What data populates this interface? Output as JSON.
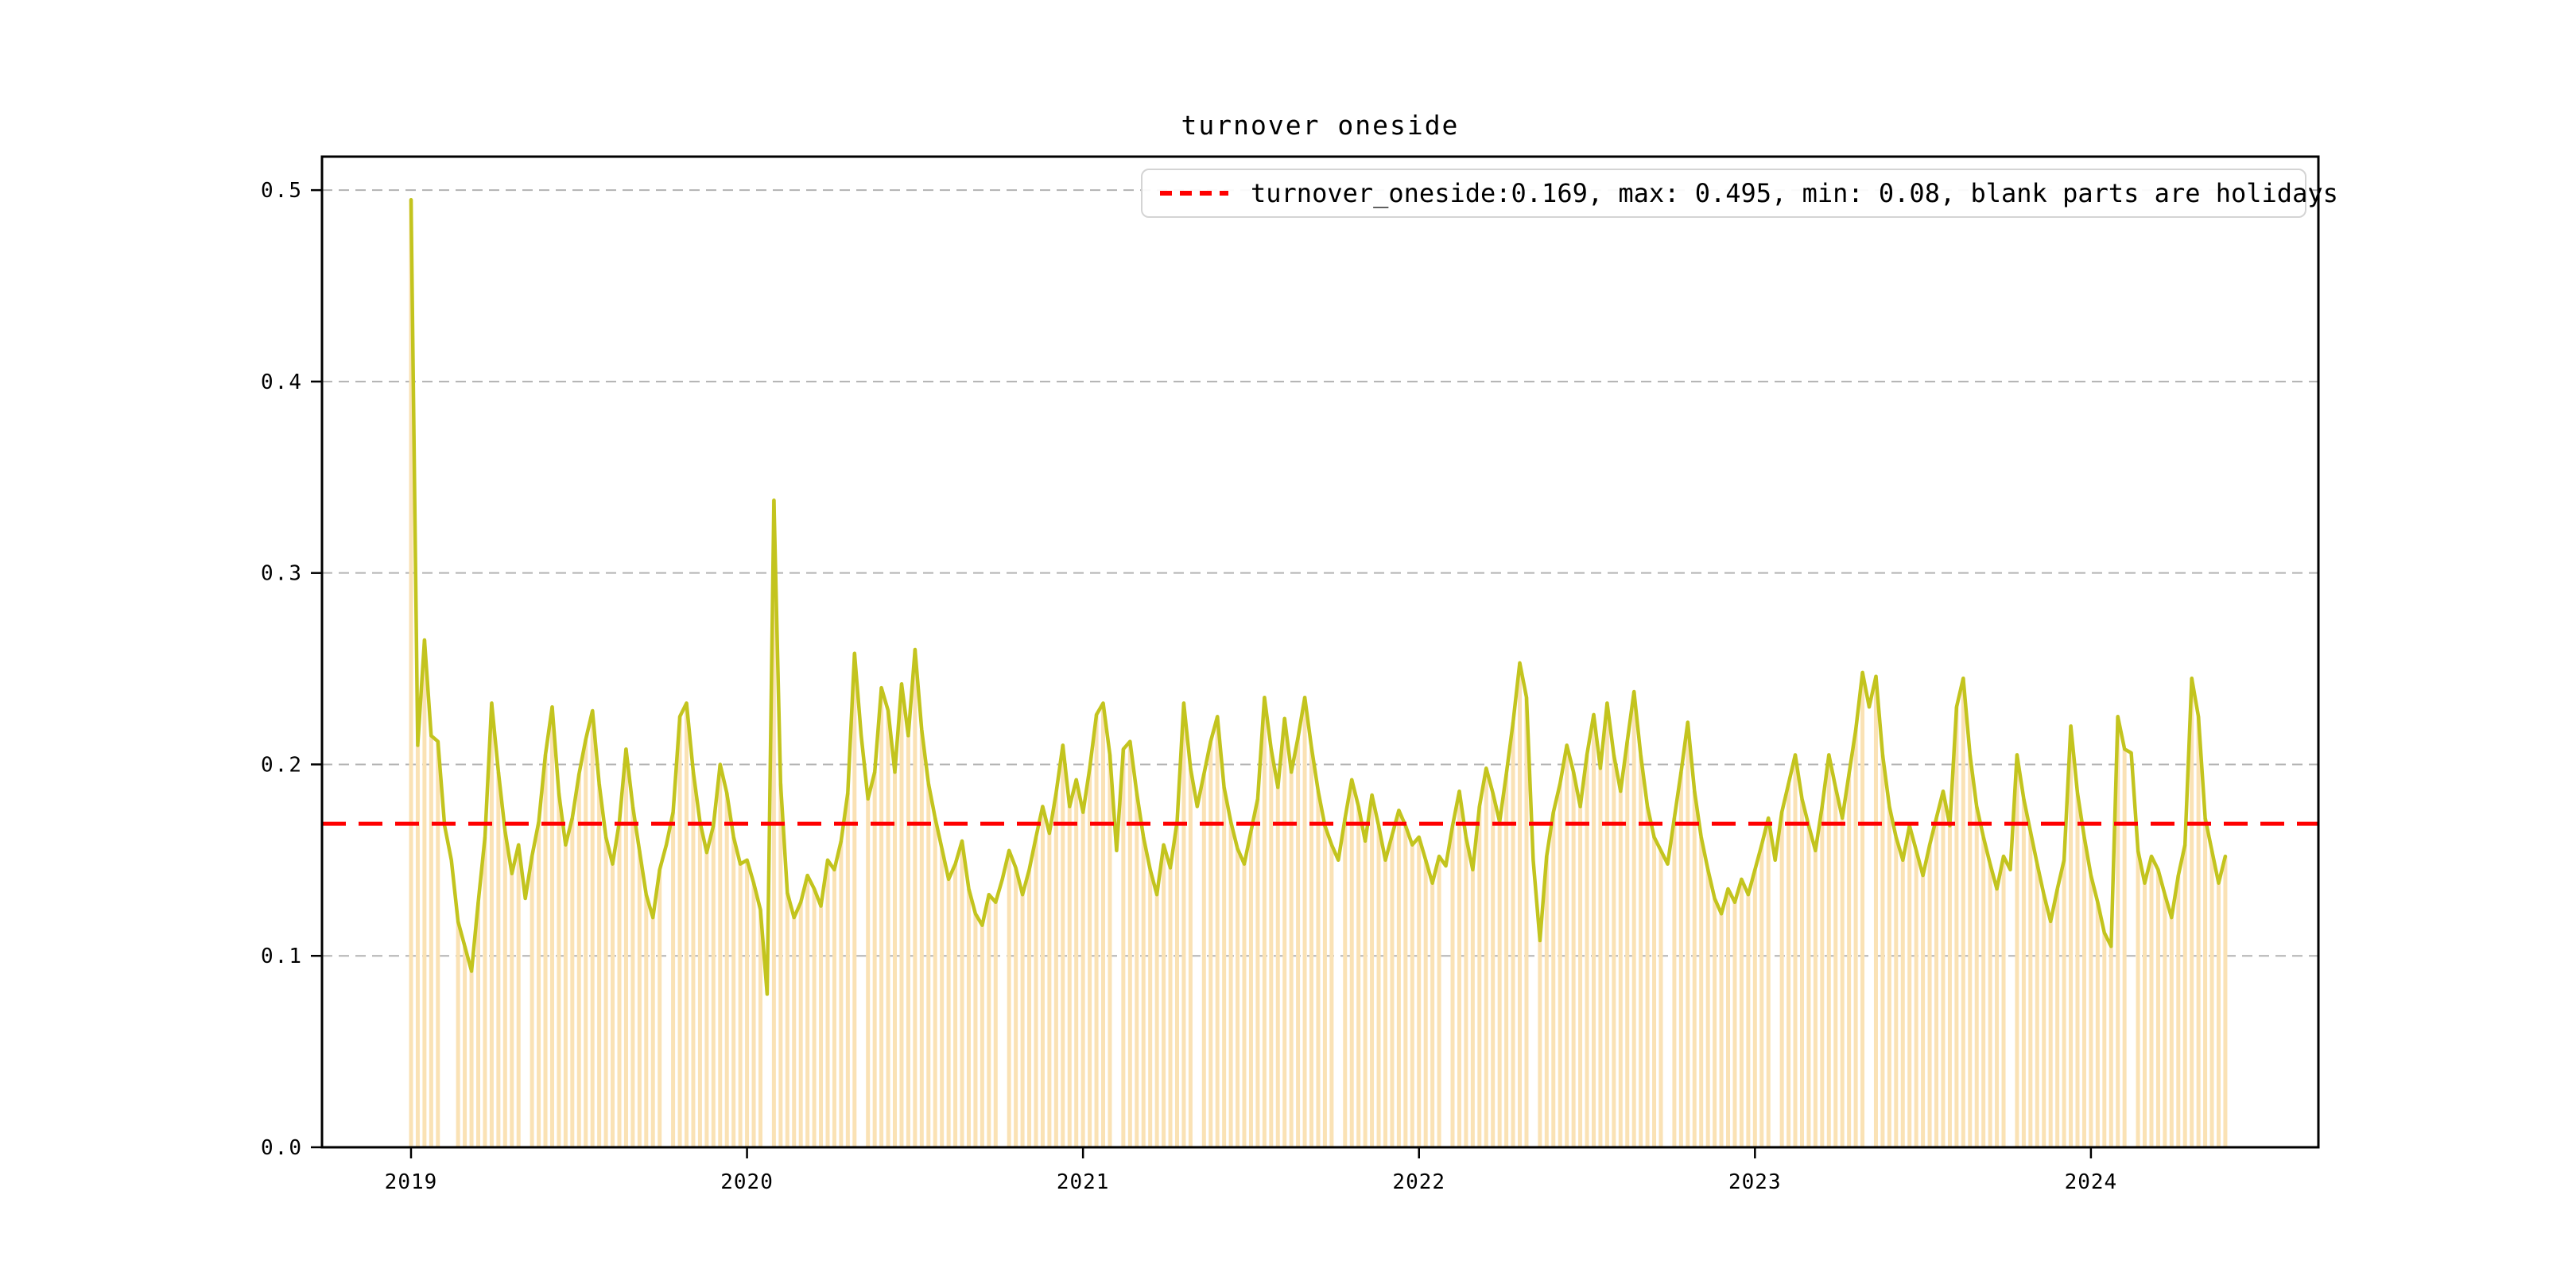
{
  "title": "turnover oneside",
  "legend": {
    "label": "turnover_oneside:0.169, max: 0.495, min: 0.08, blank parts are holidays",
    "marker": "red-dashed-line"
  },
  "colors": {
    "line": "#c3c41e",
    "bar": "#fae2b5",
    "mean_line": "#ff0000",
    "grid": "#b3b3b3",
    "spine": "#000000",
    "text": "#000000",
    "background": "#ffffff",
    "legend_border": "#d4d4d4"
  },
  "chart_data": {
    "type": "line",
    "title": "turnover oneside",
    "xlabel": "",
    "ylabel": "",
    "series_name": "turnover_oneside",
    "mean": 0.169,
    "max": 0.495,
    "min": 0.08,
    "mean_line_y": 0.169,
    "x_ticks": [
      2019,
      2020,
      2021,
      2022,
      2023,
      2024
    ],
    "x_tick_labels": [
      "2019",
      "2020",
      "2021",
      "2022",
      "2023",
      "2024"
    ],
    "y_ticks": [
      0.0,
      0.1,
      0.2,
      0.3,
      0.4,
      0.5
    ],
    "y_tick_labels": [
      "0.0",
      "0.1",
      "0.2",
      "0.3",
      "0.4",
      "0.5"
    ],
    "xlim": [
      2018.735,
      2024.677
    ],
    "ylim": [
      0,
      0.5175
    ],
    "grid": true,
    "legend_position": "upper right",
    "note": "orange bars rise from 0 to the daily value; blank stripes are market holidays",
    "holiday_bar_gaps": [
      [
        2019.09,
        2019.13
      ],
      [
        2019.33,
        2019.35
      ],
      [
        2019.75,
        2019.77
      ],
      [
        2020.05,
        2020.075
      ],
      [
        2020.33,
        2020.35
      ],
      [
        2020.75,
        2020.77
      ],
      [
        2021.09,
        2021.115
      ],
      [
        2021.33,
        2021.35
      ],
      [
        2021.75,
        2021.77
      ],
      [
        2022.07,
        2022.095
      ],
      [
        2022.33,
        2022.35
      ],
      [
        2022.73,
        2022.755
      ],
      [
        2023.05,
        2023.075
      ],
      [
        2023.33,
        2023.35
      ],
      [
        2023.75,
        2023.775
      ],
      [
        2024.11,
        2024.135
      ]
    ],
    "points": [
      [
        2019.0,
        0.495
      ],
      [
        2019.02,
        0.21
      ],
      [
        2019.04,
        0.265
      ],
      [
        2019.06,
        0.215
      ],
      [
        2019.08,
        0.212
      ],
      [
        2019.1,
        0.168
      ],
      [
        2019.12,
        0.15
      ],
      [
        2019.14,
        0.118
      ],
      [
        2019.16,
        0.105
      ],
      [
        2019.18,
        0.092
      ],
      [
        2019.2,
        0.128
      ],
      [
        2019.22,
        0.162
      ],
      [
        2019.24,
        0.232
      ],
      [
        2019.26,
        0.196
      ],
      [
        2019.28,
        0.165
      ],
      [
        2019.3,
        0.143
      ],
      [
        2019.32,
        0.158
      ],
      [
        2019.34,
        0.13
      ],
      [
        2019.36,
        0.152
      ],
      [
        2019.38,
        0.17
      ],
      [
        2019.4,
        0.205
      ],
      [
        2019.42,
        0.23
      ],
      [
        2019.44,
        0.185
      ],
      [
        2019.46,
        0.158
      ],
      [
        2019.48,
        0.172
      ],
      [
        2019.5,
        0.195
      ],
      [
        2019.52,
        0.213
      ],
      [
        2019.54,
        0.228
      ],
      [
        2019.56,
        0.19
      ],
      [
        2019.58,
        0.162
      ],
      [
        2019.6,
        0.148
      ],
      [
        2019.62,
        0.17
      ],
      [
        2019.64,
        0.208
      ],
      [
        2019.66,
        0.178
      ],
      [
        2019.68,
        0.155
      ],
      [
        2019.7,
        0.132
      ],
      [
        2019.72,
        0.12
      ],
      [
        2019.74,
        0.145
      ],
      [
        2019.76,
        0.158
      ],
      [
        2019.78,
        0.175
      ],
      [
        2019.8,
        0.225
      ],
      [
        2019.82,
        0.232
      ],
      [
        2019.84,
        0.196
      ],
      [
        2019.86,
        0.17
      ],
      [
        2019.88,
        0.154
      ],
      [
        2019.9,
        0.168
      ],
      [
        2019.92,
        0.2
      ],
      [
        2019.94,
        0.185
      ],
      [
        2019.96,
        0.162
      ],
      [
        2019.98,
        0.148
      ],
      [
        2020.0,
        0.15
      ],
      [
        2020.02,
        0.138
      ],
      [
        2020.04,
        0.124
      ],
      [
        2020.06,
        0.08
      ],
      [
        2020.08,
        0.338
      ],
      [
        2020.1,
        0.19
      ],
      [
        2020.12,
        0.133
      ],
      [
        2020.14,
        0.12
      ],
      [
        2020.16,
        0.128
      ],
      [
        2020.18,
        0.142
      ],
      [
        2020.2,
        0.135
      ],
      [
        2020.22,
        0.126
      ],
      [
        2020.24,
        0.15
      ],
      [
        2020.26,
        0.145
      ],
      [
        2020.28,
        0.16
      ],
      [
        2020.3,
        0.185
      ],
      [
        2020.32,
        0.258
      ],
      [
        2020.34,
        0.215
      ],
      [
        2020.36,
        0.182
      ],
      [
        2020.38,
        0.196
      ],
      [
        2020.4,
        0.24
      ],
      [
        2020.42,
        0.228
      ],
      [
        2020.44,
        0.196
      ],
      [
        2020.46,
        0.242
      ],
      [
        2020.48,
        0.215
      ],
      [
        2020.5,
        0.26
      ],
      [
        2020.52,
        0.218
      ],
      [
        2020.54,
        0.19
      ],
      [
        2020.56,
        0.172
      ],
      [
        2020.58,
        0.156
      ],
      [
        2020.6,
        0.14
      ],
      [
        2020.62,
        0.148
      ],
      [
        2020.64,
        0.16
      ],
      [
        2020.66,
        0.135
      ],
      [
        2020.68,
        0.122
      ],
      [
        2020.7,
        0.116
      ],
      [
        2020.72,
        0.132
      ],
      [
        2020.74,
        0.128
      ],
      [
        2020.76,
        0.14
      ],
      [
        2020.78,
        0.155
      ],
      [
        2020.8,
        0.146
      ],
      [
        2020.82,
        0.132
      ],
      [
        2020.84,
        0.145
      ],
      [
        2020.86,
        0.162
      ],
      [
        2020.88,
        0.178
      ],
      [
        2020.9,
        0.164
      ],
      [
        2020.92,
        0.185
      ],
      [
        2020.94,
        0.21
      ],
      [
        2020.96,
        0.178
      ],
      [
        2020.98,
        0.192
      ],
      [
        2021.0,
        0.175
      ],
      [
        2021.02,
        0.198
      ],
      [
        2021.04,
        0.226
      ],
      [
        2021.06,
        0.232
      ],
      [
        2021.08,
        0.205
      ],
      [
        2021.1,
        0.155
      ],
      [
        2021.12,
        0.208
      ],
      [
        2021.14,
        0.212
      ],
      [
        2021.16,
        0.185
      ],
      [
        2021.18,
        0.162
      ],
      [
        2021.2,
        0.145
      ],
      [
        2021.22,
        0.132
      ],
      [
        2021.24,
        0.158
      ],
      [
        2021.26,
        0.146
      ],
      [
        2021.28,
        0.17
      ],
      [
        2021.3,
        0.232
      ],
      [
        2021.32,
        0.198
      ],
      [
        2021.34,
        0.178
      ],
      [
        2021.36,
        0.195
      ],
      [
        2021.38,
        0.212
      ],
      [
        2021.4,
        0.225
      ],
      [
        2021.42,
        0.188
      ],
      [
        2021.44,
        0.17
      ],
      [
        2021.46,
        0.156
      ],
      [
        2021.48,
        0.148
      ],
      [
        2021.5,
        0.165
      ],
      [
        2021.52,
        0.182
      ],
      [
        2021.54,
        0.235
      ],
      [
        2021.56,
        0.208
      ],
      [
        2021.58,
        0.188
      ],
      [
        2021.6,
        0.224
      ],
      [
        2021.62,
        0.196
      ],
      [
        2021.64,
        0.214
      ],
      [
        2021.66,
        0.235
      ],
      [
        2021.68,
        0.209
      ],
      [
        2021.7,
        0.186
      ],
      [
        2021.72,
        0.168
      ],
      [
        2021.74,
        0.158
      ],
      [
        2021.76,
        0.15
      ],
      [
        2021.78,
        0.172
      ],
      [
        2021.8,
        0.192
      ],
      [
        2021.82,
        0.178
      ],
      [
        2021.84,
        0.16
      ],
      [
        2021.86,
        0.184
      ],
      [
        2021.88,
        0.168
      ],
      [
        2021.9,
        0.15
      ],
      [
        2021.92,
        0.163
      ],
      [
        2021.94,
        0.176
      ],
      [
        2021.96,
        0.168
      ],
      [
        2021.98,
        0.158
      ],
      [
        2022.0,
        0.162
      ],
      [
        2022.02,
        0.15
      ],
      [
        2022.04,
        0.138
      ],
      [
        2022.06,
        0.152
      ],
      [
        2022.08,
        0.147
      ],
      [
        2022.1,
        0.168
      ],
      [
        2022.12,
        0.186
      ],
      [
        2022.14,
        0.162
      ],
      [
        2022.16,
        0.145
      ],
      [
        2022.18,
        0.178
      ],
      [
        2022.2,
        0.198
      ],
      [
        2022.22,
        0.185
      ],
      [
        2022.24,
        0.17
      ],
      [
        2022.26,
        0.195
      ],
      [
        2022.28,
        0.222
      ],
      [
        2022.3,
        0.253
      ],
      [
        2022.32,
        0.235
      ],
      [
        2022.34,
        0.15
      ],
      [
        2022.36,
        0.108
      ],
      [
        2022.38,
        0.152
      ],
      [
        2022.4,
        0.175
      ],
      [
        2022.42,
        0.19
      ],
      [
        2022.44,
        0.21
      ],
      [
        2022.46,
        0.196
      ],
      [
        2022.48,
        0.178
      ],
      [
        2022.5,
        0.205
      ],
      [
        2022.52,
        0.226
      ],
      [
        2022.54,
        0.198
      ],
      [
        2022.56,
        0.232
      ],
      [
        2022.58,
        0.205
      ],
      [
        2022.6,
        0.186
      ],
      [
        2022.62,
        0.212
      ],
      [
        2022.64,
        0.238
      ],
      [
        2022.66,
        0.205
      ],
      [
        2022.68,
        0.178
      ],
      [
        2022.7,
        0.162
      ],
      [
        2022.72,
        0.155
      ],
      [
        2022.74,
        0.148
      ],
      [
        2022.76,
        0.172
      ],
      [
        2022.78,
        0.196
      ],
      [
        2022.8,
        0.222
      ],
      [
        2022.82,
        0.186
      ],
      [
        2022.84,
        0.162
      ],
      [
        2022.86,
        0.145
      ],
      [
        2022.88,
        0.13
      ],
      [
        2022.9,
        0.122
      ],
      [
        2022.92,
        0.135
      ],
      [
        2022.94,
        0.128
      ],
      [
        2022.96,
        0.14
      ],
      [
        2022.98,
        0.132
      ],
      [
        2023.0,
        0.145
      ],
      [
        2023.02,
        0.158
      ],
      [
        2023.04,
        0.172
      ],
      [
        2023.06,
        0.15
      ],
      [
        2023.08,
        0.175
      ],
      [
        2023.1,
        0.19
      ],
      [
        2023.12,
        0.205
      ],
      [
        2023.14,
        0.182
      ],
      [
        2023.16,
        0.168
      ],
      [
        2023.18,
        0.155
      ],
      [
        2023.2,
        0.178
      ],
      [
        2023.22,
        0.205
      ],
      [
        2023.24,
        0.188
      ],
      [
        2023.26,
        0.172
      ],
      [
        2023.28,
        0.195
      ],
      [
        2023.3,
        0.218
      ],
      [
        2023.32,
        0.248
      ],
      [
        2023.34,
        0.23
      ],
      [
        2023.36,
        0.246
      ],
      [
        2023.38,
        0.205
      ],
      [
        2023.4,
        0.178
      ],
      [
        2023.42,
        0.162
      ],
      [
        2023.44,
        0.15
      ],
      [
        2023.46,
        0.168
      ],
      [
        2023.48,
        0.155
      ],
      [
        2023.5,
        0.142
      ],
      [
        2023.52,
        0.158
      ],
      [
        2023.54,
        0.172
      ],
      [
        2023.56,
        0.186
      ],
      [
        2023.58,
        0.168
      ],
      [
        2023.6,
        0.23
      ],
      [
        2023.62,
        0.245
      ],
      [
        2023.64,
        0.205
      ],
      [
        2023.66,
        0.178
      ],
      [
        2023.68,
        0.162
      ],
      [
        2023.7,
        0.148
      ],
      [
        2023.72,
        0.135
      ],
      [
        2023.74,
        0.152
      ],
      [
        2023.76,
        0.145
      ],
      [
        2023.78,
        0.205
      ],
      [
        2023.8,
        0.182
      ],
      [
        2023.82,
        0.165
      ],
      [
        2023.84,
        0.148
      ],
      [
        2023.86,
        0.132
      ],
      [
        2023.88,
        0.118
      ],
      [
        2023.9,
        0.135
      ],
      [
        2023.92,
        0.15
      ],
      [
        2023.94,
        0.22
      ],
      [
        2023.96,
        0.185
      ],
      [
        2023.98,
        0.162
      ],
      [
        2024.0,
        0.142
      ],
      [
        2024.02,
        0.128
      ],
      [
        2024.04,
        0.112
      ],
      [
        2024.06,
        0.105
      ],
      [
        2024.08,
        0.225
      ],
      [
        2024.1,
        0.208
      ],
      [
        2024.12,
        0.206
      ],
      [
        2024.14,
        0.155
      ],
      [
        2024.16,
        0.138
      ],
      [
        2024.18,
        0.152
      ],
      [
        2024.2,
        0.145
      ],
      [
        2024.22,
        0.132
      ],
      [
        2024.24,
        0.12
      ],
      [
        2024.26,
        0.142
      ],
      [
        2024.28,
        0.158
      ],
      [
        2024.3,
        0.245
      ],
      [
        2024.32,
        0.225
      ],
      [
        2024.34,
        0.172
      ],
      [
        2024.36,
        0.155
      ],
      [
        2024.38,
        0.138
      ],
      [
        2024.4,
        0.152
      ]
    ]
  }
}
